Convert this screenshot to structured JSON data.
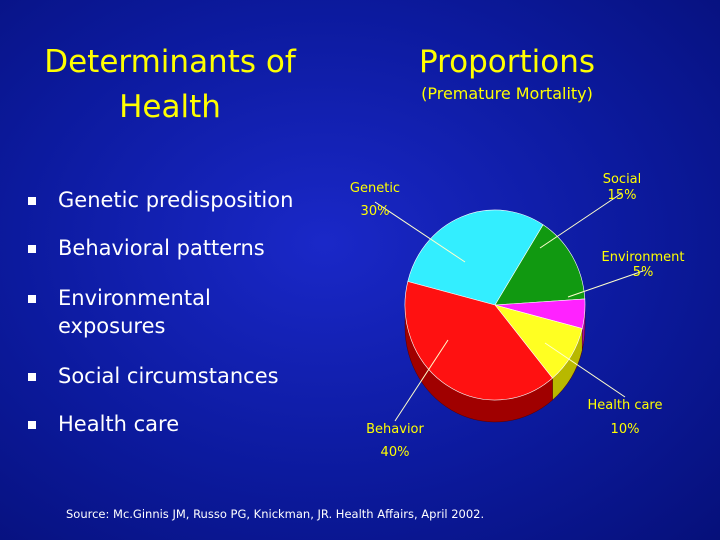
{
  "left_title": "Determinants of Health",
  "bullets": [
    "Genetic predisposition",
    "Behavioral patterns",
    "Environmental exposures",
    "Social circumstances",
    "Health care"
  ],
  "right_title": "Proportions",
  "right_subtitle": "(Premature Mortality)",
  "source": "Source: Mc.Ginnis JM, Russo PG, Knickman, JR. Health Affairs, April 2002.",
  "chart_data": {
    "type": "pie",
    "title": "Proportions",
    "subtitle": "(Premature Mortality)",
    "slices": [
      {
        "label": "Genetic",
        "value": 30,
        "value_label": "30%",
        "color": "#33eeff",
        "side": "#1ab0c0"
      },
      {
        "label": "Social",
        "value": 15,
        "value_label": "15%",
        "color": "#119911",
        "side": "#0a5a0a"
      },
      {
        "label": "Environment",
        "value": 5,
        "value_label": "5%",
        "color": "#ff22ff",
        "side": "#a010a0"
      },
      {
        "label": "Health care",
        "value": 10,
        "value_label": "10%",
        "color": "#ffff22",
        "side": "#b8b800"
      },
      {
        "label": "Behavior",
        "value": 40,
        "value_label": "40%",
        "color": "#ff1111",
        "side": "#a00000"
      }
    ],
    "label_color": "#ffff00",
    "leader_color": "#ffffcc",
    "style": "3d-pie"
  }
}
